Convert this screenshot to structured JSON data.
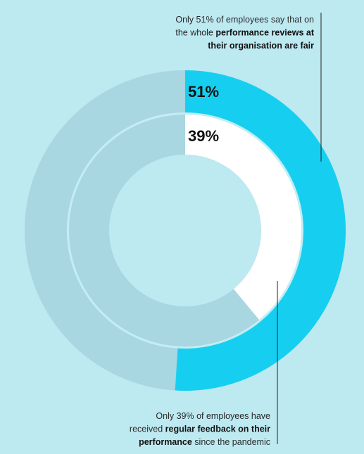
{
  "chart_data": {
    "type": "donut",
    "values": [
      51,
      39
    ],
    "value_labels": [
      "51%",
      "39%"
    ],
    "colors": [
      "#16cff0",
      "#ffffff"
    ],
    "track_color": "#a8d6e1",
    "ylim": [
      0,
      100
    ],
    "annotations": [
      [
        [
          {
            "text": "Only 51% of employees say that on",
            "bold": false
          }
        ],
        [
          {
            "text": "the whole ",
            "bold": false
          },
          {
            "text": "performance reviews at",
            "bold": true
          }
        ],
        [
          {
            "text": "their organisation are fair",
            "bold": true
          }
        ]
      ],
      [
        [
          {
            "text": "Only 39% of employees have",
            "bold": false
          }
        ],
        [
          {
            "text": "received ",
            "bold": false
          },
          {
            "text": "regular feedback on their",
            "bold": true
          }
        ],
        [
          {
            "text": "performance",
            "bold": true
          },
          {
            "text": " since the pandemic",
            "bold": false
          }
        ]
      ]
    ]
  }
}
